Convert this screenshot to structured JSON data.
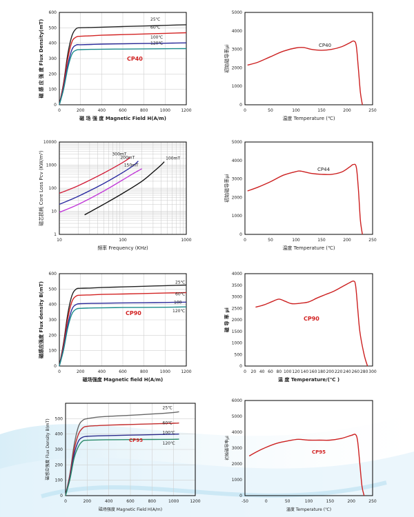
{
  "chart_data": [
    {
      "type": "line",
      "ylabel": "磁 感 应 强 度 Flux Density(mT)",
      "xlabel": "磁 场 强 度 Magnetic Field H(A/m)",
      "xlim": [
        0,
        1200
      ],
      "ylim": [
        0,
        600
      ],
      "xticks": [
        0,
        200,
        400,
        600,
        800,
        1000,
        1200
      ],
      "yticks": [
        0,
        100,
        200,
        300,
        400,
        500,
        600
      ],
      "annotation": "CP40",
      "grid": true,
      "series": [
        {
          "name": "25℃",
          "color": "#222222",
          "x": [
            0,
            40,
            80,
            120,
            160,
            200,
            300,
            400,
            600,
            800,
            1000,
            1200
          ],
          "y": [
            0,
            140,
            330,
            450,
            495,
            500,
            502,
            504,
            508,
            512,
            516,
            520
          ]
        },
        {
          "name": "60℃",
          "color": "#d22222",
          "x": [
            0,
            40,
            80,
            120,
            160,
            200,
            300,
            400,
            600,
            800,
            1000,
            1200
          ],
          "y": [
            0,
            130,
            300,
            410,
            440,
            445,
            448,
            452,
            456,
            460,
            464,
            468
          ]
        },
        {
          "name": "100℃",
          "color": "#2a2a9a",
          "x": [
            0,
            40,
            80,
            120,
            160,
            200,
            300,
            400,
            600,
            800,
            1000,
            1200
          ],
          "y": [
            0,
            110,
            260,
            360,
            388,
            390,
            392,
            394,
            396,
            398,
            400,
            402
          ]
        },
        {
          "name": "120℃",
          "color": "#1a8a8a",
          "x": [
            0,
            40,
            80,
            120,
            160,
            200,
            300,
            400,
            600,
            800,
            1000,
            1200
          ],
          "y": [
            0,
            100,
            240,
            330,
            355,
            358,
            360,
            361,
            362,
            363,
            364,
            365
          ]
        }
      ]
    },
    {
      "type": "line",
      "ylabel": "初始磁导率μi",
      "xlabel": "温度 Temperature (℃)",
      "xlim": [
        0,
        250
      ],
      "ylim": [
        0,
        5000
      ],
      "xticks": [
        0,
        50,
        100,
        150,
        200,
        250
      ],
      "yticks": [
        0,
        1000,
        2000,
        3000,
        4000,
        5000
      ],
      "annotation": "CP40",
      "grid": false,
      "series": [
        {
          "name": "",
          "color": "#cc1f1f",
          "x": [
            5,
            25,
            50,
            75,
            100,
            115,
            130,
            150,
            170,
            190,
            205,
            213,
            218,
            222,
            226,
            230
          ],
          "y": [
            2150,
            2300,
            2600,
            2900,
            3080,
            3100,
            3000,
            2950,
            3000,
            3150,
            3350,
            3450,
            3200,
            2000,
            700,
            0
          ]
        }
      ]
    },
    {
      "type": "line",
      "log_x": true,
      "log_y": true,
      "ylabel": "磁芯损耗 Core Loss Pcv (KW/m³)",
      "xlabel": "频率 Frequency (KHz)",
      "xlim": [
        10,
        1000
      ],
      "ylim": [
        1,
        10000
      ],
      "xticks": [
        10,
        100,
        1000
      ],
      "yticks": [
        1,
        10,
        100,
        1000,
        10000
      ],
      "grid": true,
      "series": [
        {
          "name": "300mT",
          "color": "#d21f3a",
          "x": [
            10,
            20,
            50,
            100,
            130
          ],
          "y": [
            60,
            130,
            450,
            1300,
            2100
          ]
        },
        {
          "name": "200mT",
          "color": "#2a2aa0",
          "x": [
            10,
            20,
            50,
            100,
            150,
            175
          ],
          "y": [
            20,
            45,
            160,
            480,
            1000,
            1500
          ]
        },
        {
          "name": "150mT",
          "color": "#c23ad8",
          "x": [
            10,
            20,
            50,
            100,
            150,
            200
          ],
          "y": [
            9,
            20,
            75,
            230,
            450,
            700
          ]
        },
        {
          "name": "100mT",
          "color": "#111111",
          "x": [
            25,
            50,
            100,
            200,
            300,
            400,
            450
          ],
          "y": [
            7,
            20,
            60,
            200,
            500,
            1000,
            1400
          ]
        }
      ]
    },
    {
      "type": "line",
      "ylabel": "初始磁导率μi",
      "xlabel": "温度 Temperature (℃)",
      "xlim": [
        0,
        250
      ],
      "ylim": [
        0,
        5000
      ],
      "xticks": [
        0,
        50,
        100,
        150,
        200,
        250
      ],
      "yticks": [
        0,
        1000,
        2000,
        3000,
        4000,
        5000
      ],
      "annotation": "CP44",
      "grid": false,
      "series": [
        {
          "name": "",
          "color": "#cc1f1f",
          "x": [
            5,
            25,
            50,
            75,
            100,
            110,
            130,
            150,
            170,
            190,
            205,
            212,
            218,
            222,
            226,
            230
          ],
          "y": [
            2350,
            2550,
            2850,
            3200,
            3400,
            3420,
            3300,
            3250,
            3250,
            3380,
            3650,
            3780,
            3650,
            2500,
            800,
            0
          ]
        }
      ]
    },
    {
      "type": "line",
      "ylabel": "磁感应强度 Flux density B(mT)",
      "xlabel": "磁场强度 Magnetic field H(A/m)",
      "xlim": [
        0,
        1200
      ],
      "ylim": [
        0,
        600
      ],
      "xticks": [
        0,
        200,
        400,
        600,
        800,
        1000,
        1200
      ],
      "yticks": [
        0,
        100,
        200,
        300,
        400,
        500,
        600
      ],
      "annotation": "CP90",
      "grid": true,
      "series": [
        {
          "name": "25℃",
          "color": "#222222",
          "x": [
            0,
            40,
            80,
            120,
            160,
            200,
            300,
            400,
            600,
            800,
            1000,
            1200
          ],
          "y": [
            0,
            150,
            340,
            460,
            500,
            505,
            507,
            510,
            514,
            518,
            522,
            526
          ]
        },
        {
          "name": "60℃",
          "color": "#d22222",
          "x": [
            0,
            40,
            80,
            120,
            160,
            200,
            300,
            400,
            600,
            800,
            1000,
            1200
          ],
          "y": [
            0,
            135,
            310,
            420,
            455,
            460,
            462,
            465,
            468,
            471,
            474,
            477
          ]
        },
        {
          "name": "100",
          "color": "#2a2a9a",
          "x": [
            0,
            40,
            80,
            120,
            160,
            200,
            300,
            400,
            600,
            800,
            1000,
            1200
          ],
          "y": [
            0,
            115,
            270,
            370,
            400,
            405,
            407,
            408,
            410,
            411,
            413,
            415
          ]
        },
        {
          "name": "120℃",
          "color": "#1a8a8a",
          "x": [
            0,
            40,
            80,
            120,
            160,
            200,
            300,
            400,
            600,
            800,
            1000,
            1200
          ],
          "y": [
            0,
            105,
            250,
            340,
            370,
            375,
            377,
            378,
            380,
            381,
            382,
            384
          ]
        }
      ]
    },
    {
      "type": "line",
      "ylabel": "磁 导 率 μi",
      "xlabel": "温 度  Temperature/(℃ )",
      "xlim": [
        0,
        300
      ],
      "ylim": [
        0,
        4000
      ],
      "xticks": [
        0,
        20,
        40,
        60,
        80,
        100,
        120,
        140,
        160,
        180,
        200,
        220,
        240,
        260,
        280,
        300
      ],
      "yticks": [
        0,
        500,
        1000,
        1500,
        2000,
        2500,
        3000,
        3500,
        4000
      ],
      "annotation": "CP90",
      "grid": false,
      "series": [
        {
          "name": "",
          "color": "#cc1f1f",
          "x": [
            25,
            45,
            65,
            80,
            95,
            110,
            130,
            150,
            170,
            190,
            210,
            230,
            245,
            255,
            260,
            265,
            270,
            280,
            288
          ],
          "y": [
            2550,
            2650,
            2800,
            2900,
            2800,
            2700,
            2720,
            2780,
            2950,
            3100,
            3250,
            3450,
            3600,
            3680,
            3500,
            2500,
            1500,
            500,
            0
          ]
        }
      ]
    },
    {
      "type": "line",
      "ylabel": "磁感应强度 Flux Density B(mT)",
      "xlabel": "磁场强度 Magnetic Field H(A/m)",
      "xlim": [
        0,
        1200
      ],
      "ylim": [
        0,
        600
      ],
      "xticks": [
        0,
        200,
        400,
        600,
        800,
        1000,
        1200
      ],
      "yticks": [
        0,
        100,
        200,
        300,
        400,
        500
      ],
      "annotation": "CP95",
      "grid": true,
      "series": [
        {
          "name": "25℃",
          "color": "#666666",
          "x": [
            0,
            40,
            80,
            120,
            160,
            200,
            300,
            400,
            600,
            800,
            1000,
            1050
          ],
          "y": [
            0,
            140,
            330,
            450,
            490,
            500,
            510,
            515,
            522,
            530,
            540,
            545
          ]
        },
        {
          "name": "60℃",
          "color": "#c22a2a",
          "x": [
            0,
            40,
            80,
            120,
            160,
            200,
            300,
            400,
            600,
            800,
            1000,
            1050
          ],
          "y": [
            0,
            130,
            300,
            400,
            440,
            450,
            455,
            458,
            462,
            466,
            470,
            472
          ]
        },
        {
          "name": "100℃",
          "color": "#2a2a8a",
          "x": [
            0,
            40,
            80,
            120,
            160,
            200,
            300,
            400,
            600,
            800,
            1000,
            1050
          ],
          "y": [
            0,
            115,
            270,
            355,
            380,
            385,
            388,
            390,
            393,
            396,
            399,
            400
          ]
        },
        {
          "name": "120℃",
          "color": "#2a8a6a",
          "x": [
            0,
            40,
            80,
            120,
            160,
            200,
            300,
            400,
            600,
            800,
            1000,
            1050
          ],
          "y": [
            0,
            105,
            245,
            320,
            355,
            360,
            362,
            363,
            364,
            365,
            366,
            367
          ]
        }
      ]
    },
    {
      "type": "line",
      "ylabel": "初始磁导率μi",
      "xlabel": "温度 Temperature (℃)",
      "xlim": [
        -50,
        250
      ],
      "ylim": [
        0,
        6000
      ],
      "xticks": [
        -50,
        0,
        50,
        100,
        150,
        200,
        250
      ],
      "yticks": [
        0,
        1000,
        2000,
        3000,
        4000,
        5000,
        6000
      ],
      "annotation": "CP95",
      "grid": false,
      "series": [
        {
          "name": "",
          "color": "#cc1f1f",
          "x": [
            -40,
            -20,
            0,
            25,
            50,
            75,
            100,
            125,
            150,
            175,
            200,
            210,
            215,
            220,
            225,
            230
          ],
          "y": [
            2500,
            2800,
            3050,
            3300,
            3450,
            3550,
            3500,
            3500,
            3500,
            3600,
            3800,
            3850,
            3400,
            2000,
            600,
            0
          ]
        }
      ]
    }
  ]
}
